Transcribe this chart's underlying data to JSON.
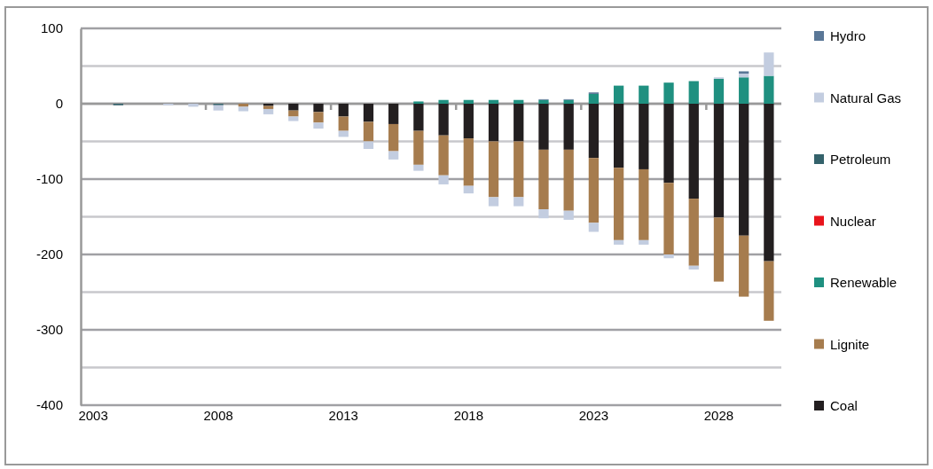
{
  "chart_data": {
    "type": "bar",
    "stacked": true,
    "legend": "right",
    "grid": "y",
    "categories": [
      "2003",
      null,
      null,
      null,
      null,
      "2008",
      null,
      null,
      null,
      null,
      "2013",
      null,
      null,
      null,
      null,
      "2018",
      null,
      null,
      null,
      null,
      "2023",
      null,
      null,
      null,
      null,
      "2028",
      null,
      null
    ],
    "ylim": [
      -400,
      100
    ],
    "yticks": [
      -400,
      {
        "value": -350,
        "label": null
      },
      -300,
      {
        "value": -250,
        "label": null
      },
      -200,
      {
        "value": -150,
        "label": null
      },
      -100,
      {
        "value": -50,
        "label": null
      },
      0,
      {
        "value": 50,
        "label": null
      },
      100
    ],
    "series": [
      {
        "name": "Coal",
        "color": "#231f20",
        "values": [
          null,
          null,
          null,
          null,
          null,
          null,
          null,
          -3,
          -9,
          -11,
          -17,
          -24,
          -27,
          -36,
          -42,
          -46,
          -50,
          -50,
          -61,
          -61,
          -72,
          -85,
          -87,
          -105,
          -126,
          -151,
          -175,
          -209
        ]
      },
      {
        "name": "Lignite",
        "color": "#a67c4e",
        "values": [
          null,
          null,
          null,
          null,
          null,
          null,
          -4,
          -4,
          -8,
          -14,
          -19,
          -26,
          -36,
          -45,
          -53,
          -63,
          -74,
          -74,
          -79,
          -81,
          -86,
          -96,
          -94,
          -95,
          -89,
          -85,
          -81,
          -79
        ]
      },
      {
        "name": "Renewable",
        "color": "#1f9080",
        "values": [
          null,
          null,
          null,
          null,
          null,
          null,
          null,
          null,
          null,
          null,
          null,
          null,
          null,
          3,
          5,
          5,
          5,
          5,
          5,
          5,
          13,
          24,
          24,
          28,
          30,
          33,
          35,
          37
        ]
      },
      {
        "name": "Nuclear",
        "color": "#e8141c",
        "values": [
          null,
          null,
          null,
          null,
          null,
          null,
          null,
          null,
          null,
          null,
          null,
          null,
          null,
          null,
          null,
          null,
          null,
          null,
          null,
          null,
          null,
          null,
          null,
          null,
          null,
          null,
          null,
          null
        ]
      },
      {
        "name": "Petroleum",
        "color": "#34626b",
        "values": [
          null,
          -2,
          null,
          null,
          null,
          -2,
          null,
          null,
          null,
          null,
          null,
          null,
          null,
          null,
          null,
          null,
          null,
          null,
          null,
          null,
          null,
          null,
          null,
          null,
          null,
          null,
          null,
          null
        ]
      },
      {
        "name": "Natural Gas",
        "color": "#c3cde0",
        "values": [
          null,
          null,
          null,
          -2,
          -4,
          -7,
          -6,
          -7,
          -6,
          -8,
          -8,
          -10,
          -11,
          -8,
          -12,
          -10,
          -12,
          -12,
          -12,
          -12,
          -12,
          -6,
          -6,
          -5,
          -5,
          2,
          5,
          31
        ]
      },
      {
        "name": "Hydro",
        "color": "#5a7797",
        "values": [
          null,
          null,
          null,
          null,
          null,
          null,
          null,
          null,
          null,
          null,
          null,
          null,
          null,
          null,
          null,
          null,
          null,
          null,
          1,
          1,
          2,
          null,
          null,
          null,
          null,
          null,
          3,
          null
        ]
      }
    ]
  }
}
